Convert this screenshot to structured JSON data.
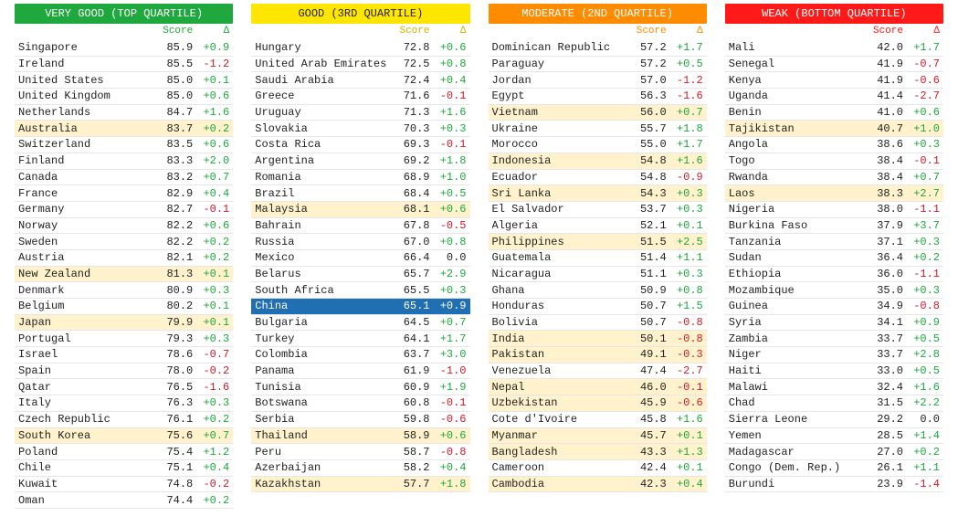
{
  "columns": [
    {
      "key": "vg",
      "title": "VERY GOOD (TOP QUARTILE)",
      "header_bg": "#1ea83e",
      "header_fg": "#ffffff",
      "sub_color": "#1ea83e",
      "labels": {
        "score": "Score",
        "delta": "Δ"
      },
      "rows": [
        {
          "country": "Singapore",
          "score": 85.9,
          "delta": 0.9
        },
        {
          "country": "Ireland",
          "score": 85.5,
          "delta": -1.2
        },
        {
          "country": "United States",
          "score": 85.0,
          "delta": 0.1
        },
        {
          "country": "United Kingdom",
          "score": 85.0,
          "delta": 0.6
        },
        {
          "country": "Netherlands",
          "score": 84.7,
          "delta": 1.6
        },
        {
          "country": "Australia",
          "score": 83.7,
          "delta": 0.2,
          "alt": true
        },
        {
          "country": "Switzerland",
          "score": 83.5,
          "delta": 0.6
        },
        {
          "country": "Finland",
          "score": 83.3,
          "delta": 2.0
        },
        {
          "country": "Canada",
          "score": 83.2,
          "delta": 0.7
        },
        {
          "country": "France",
          "score": 82.9,
          "delta": 0.4
        },
        {
          "country": "Germany",
          "score": 82.7,
          "delta": -0.1
        },
        {
          "country": "Norway",
          "score": 82.2,
          "delta": 0.6
        },
        {
          "country": "Sweden",
          "score": 82.2,
          "delta": 0.2
        },
        {
          "country": "Austria",
          "score": 82.1,
          "delta": 0.2
        },
        {
          "country": "New Zealand",
          "score": 81.3,
          "delta": 0.1,
          "alt": true
        },
        {
          "country": "Denmark",
          "score": 80.9,
          "delta": 0.3
        },
        {
          "country": "Belgium",
          "score": 80.2,
          "delta": 0.1
        },
        {
          "country": "Japan",
          "score": 79.9,
          "delta": 0.1,
          "alt": true
        },
        {
          "country": "Portugal",
          "score": 79.3,
          "delta": 0.3
        },
        {
          "country": "Israel",
          "score": 78.6,
          "delta": -0.7
        },
        {
          "country": "Spain",
          "score": 78.0,
          "delta": -0.2
        },
        {
          "country": "Qatar",
          "score": 76.5,
          "delta": -1.6
        },
        {
          "country": "Italy",
          "score": 76.3,
          "delta": 0.3
        },
        {
          "country": "Czech Republic",
          "score": 76.1,
          "delta": 0.2
        },
        {
          "country": "South Korea",
          "score": 75.6,
          "delta": 0.7,
          "alt": true
        },
        {
          "country": "Poland",
          "score": 75.4,
          "delta": 1.2
        },
        {
          "country": "Chile",
          "score": 75.1,
          "delta": 0.4
        },
        {
          "country": "Kuwait",
          "score": 74.8,
          "delta": -0.2
        },
        {
          "country": "Oman",
          "score": 74.4,
          "delta": 0.2
        }
      ]
    },
    {
      "key": "g",
      "title": "GOOD (3RD QUARTILE)",
      "header_bg": "#ffe600",
      "header_fg": "#222222",
      "sub_color": "#c9b400",
      "labels": {
        "score": "Score",
        "delta": "Δ"
      },
      "rows": [
        {
          "country": "Hungary",
          "score": 72.8,
          "delta": 0.6
        },
        {
          "country": "United Arab Emirates",
          "score": 72.5,
          "delta": 0.8
        },
        {
          "country": "Saudi Arabia",
          "score": 72.4,
          "delta": 0.4
        },
        {
          "country": "Greece",
          "score": 71.6,
          "delta": -0.1
        },
        {
          "country": "Uruguay",
          "score": 71.3,
          "delta": 1.6
        },
        {
          "country": "Slovakia",
          "score": 70.3,
          "delta": 0.3
        },
        {
          "country": "Costa Rica",
          "score": 69.3,
          "delta": -0.1
        },
        {
          "country": "Argentina",
          "score": 69.2,
          "delta": 1.8
        },
        {
          "country": "Romania",
          "score": 68.9,
          "delta": 1.0
        },
        {
          "country": "Brazil",
          "score": 68.4,
          "delta": 0.5
        },
        {
          "country": "Malaysia",
          "score": 68.1,
          "delta": 0.6,
          "alt": true
        },
        {
          "country": "Bahrain",
          "score": 67.8,
          "delta": -0.5
        },
        {
          "country": "Russia",
          "score": 67.0,
          "delta": 0.8
        },
        {
          "country": "Mexico",
          "score": 66.4,
          "delta": 0.0
        },
        {
          "country": "Belarus",
          "score": 65.7,
          "delta": 2.9
        },
        {
          "country": "South Africa",
          "score": 65.5,
          "delta": 0.3
        },
        {
          "country": "China",
          "score": 65.1,
          "delta": 0.9,
          "highlight": true
        },
        {
          "country": "Bulgaria",
          "score": 64.5,
          "delta": 0.7
        },
        {
          "country": "Turkey",
          "score": 64.1,
          "delta": 1.7
        },
        {
          "country": "Colombia",
          "score": 63.7,
          "delta": 3.0
        },
        {
          "country": "Panama",
          "score": 61.9,
          "delta": -1.0
        },
        {
          "country": "Tunisia",
          "score": 60.9,
          "delta": 1.9
        },
        {
          "country": "Botswana",
          "score": 60.8,
          "delta": -0.1
        },
        {
          "country": "Serbia",
          "score": 59.8,
          "delta": -0.6
        },
        {
          "country": "Thailand",
          "score": 58.9,
          "delta": 0.6,
          "alt": true
        },
        {
          "country": "Peru",
          "score": 58.7,
          "delta": -0.8
        },
        {
          "country": "Azerbaijan",
          "score": 58.2,
          "delta": 0.4
        },
        {
          "country": "Kazakhstan",
          "score": 57.7,
          "delta": 1.8,
          "alt": true
        }
      ]
    },
    {
      "key": "m",
      "title": "MODERATE (2ND QUARTILE)",
      "header_bg": "#ff8c00",
      "header_fg": "#ffffff",
      "sub_color": "#ff8c00",
      "labels": {
        "score": "Score",
        "delta": "Δ"
      },
      "rows": [
        {
          "country": "Dominican Republic",
          "score": 57.2,
          "delta": 1.7
        },
        {
          "country": "Paraguay",
          "score": 57.2,
          "delta": 0.5
        },
        {
          "country": "Jordan",
          "score": 57.0,
          "delta": -1.2
        },
        {
          "country": "Egypt",
          "score": 56.3,
          "delta": -1.6
        },
        {
          "country": "Vietnam",
          "score": 56.0,
          "delta": 0.7,
          "alt": true
        },
        {
          "country": "Ukraine",
          "score": 55.7,
          "delta": 1.8
        },
        {
          "country": "Morocco",
          "score": 55.0,
          "delta": 1.7
        },
        {
          "country": "Indonesia",
          "score": 54.8,
          "delta": 1.6,
          "alt": true
        },
        {
          "country": "Ecuador",
          "score": 54.8,
          "delta": -0.9
        },
        {
          "country": "Sri Lanka",
          "score": 54.3,
          "delta": 0.3,
          "alt": true
        },
        {
          "country": "El Salvador",
          "score": 53.7,
          "delta": 0.3
        },
        {
          "country": "Algeria",
          "score": 52.1,
          "delta": 0.1
        },
        {
          "country": "Philippines",
          "score": 51.5,
          "delta": 2.5,
          "alt": true
        },
        {
          "country": "Guatemala",
          "score": 51.4,
          "delta": 1.1
        },
        {
          "country": "Nicaragua",
          "score": 51.1,
          "delta": 0.3
        },
        {
          "country": "Ghana",
          "score": 50.9,
          "delta": 0.8
        },
        {
          "country": "Honduras",
          "score": 50.7,
          "delta": 1.5
        },
        {
          "country": "Bolivia",
          "score": 50.7,
          "delta": -0.8
        },
        {
          "country": "India",
          "score": 50.1,
          "delta": -0.8,
          "alt": true
        },
        {
          "country": "Pakistan",
          "score": 49.1,
          "delta": -0.3,
          "alt": true
        },
        {
          "country": "Venezuela",
          "score": 47.4,
          "delta": -2.7
        },
        {
          "country": "Nepal",
          "score": 46.0,
          "delta": -0.1,
          "alt": true
        },
        {
          "country": "Uzbekistan",
          "score": 45.9,
          "delta": -0.6,
          "alt": true
        },
        {
          "country": "Cote d'Ivoire",
          "score": 45.8,
          "delta": 1.6
        },
        {
          "country": "Myanmar",
          "score": 45.7,
          "delta": 0.1,
          "alt": true
        },
        {
          "country": "Bangladesh",
          "score": 43.3,
          "delta": 1.3,
          "alt": true
        },
        {
          "country": "Cameroon",
          "score": 42.4,
          "delta": 0.1
        },
        {
          "country": "Cambodia",
          "score": 42.3,
          "delta": 0.4,
          "alt": true
        }
      ]
    },
    {
      "key": "w",
      "title": "WEAK (BOTTOM QUARTILE)",
      "header_bg": "#ff1a1a",
      "header_fg": "#ffffff",
      "sub_color": "#ff1a1a",
      "labels": {
        "score": "Score",
        "delta": "Δ"
      },
      "rows": [
        {
          "country": "Mali",
          "score": 42.0,
          "delta": 1.7
        },
        {
          "country": "Senegal",
          "score": 41.9,
          "delta": -0.7
        },
        {
          "country": "Kenya",
          "score": 41.9,
          "delta": -0.6
        },
        {
          "country": "Uganda",
          "score": 41.4,
          "delta": -2.7
        },
        {
          "country": "Benin",
          "score": 41.0,
          "delta": 0.6
        },
        {
          "country": "Tajikistan",
          "score": 40.7,
          "delta": 1.0,
          "alt": true
        },
        {
          "country": "Angola",
          "score": 38.6,
          "delta": 0.3
        },
        {
          "country": "Togo",
          "score": 38.4,
          "delta": -0.1
        },
        {
          "country": "Rwanda",
          "score": 38.4,
          "delta": 0.7
        },
        {
          "country": "Laos",
          "score": 38.3,
          "delta": 2.7,
          "alt": true
        },
        {
          "country": "Nigeria",
          "score": 38.0,
          "delta": -1.1
        },
        {
          "country": "Burkina Faso",
          "score": 37.9,
          "delta": 3.7
        },
        {
          "country": "Tanzania",
          "score": 37.1,
          "delta": 0.3
        },
        {
          "country": "Sudan",
          "score": 36.4,
          "delta": 0.2
        },
        {
          "country": "Ethiopia",
          "score": 36.0,
          "delta": -1.1
        },
        {
          "country": "Mozambique",
          "score": 35.0,
          "delta": 0.3
        },
        {
          "country": "Guinea",
          "score": 34.9,
          "delta": -0.8
        },
        {
          "country": "Syria",
          "score": 34.1,
          "delta": 0.9
        },
        {
          "country": "Zambia",
          "score": 33.7,
          "delta": 0.5
        },
        {
          "country": "Niger",
          "score": 33.7,
          "delta": 2.8
        },
        {
          "country": "Haiti",
          "score": 33.0,
          "delta": 0.5
        },
        {
          "country": "Malawi",
          "score": 32.4,
          "delta": 1.6
        },
        {
          "country": "Chad",
          "score": 31.5,
          "delta": 2.2
        },
        {
          "country": "Sierra Leone",
          "score": 29.2,
          "delta": 0.0
        },
        {
          "country": "Yemen",
          "score": 28.5,
          "delta": 1.4
        },
        {
          "country": "Madagascar",
          "score": 27.0,
          "delta": 0.2
        },
        {
          "country": "Congo (Dem. Rep.)",
          "score": 26.1,
          "delta": 1.1
        },
        {
          "country": "Burundi",
          "score": 23.9,
          "delta": -1.4
        }
      ]
    }
  ],
  "style": {
    "delta_up_color": "#1ea83e",
    "delta_down_color": "#d11a2a",
    "delta_zero_color": "#222222",
    "alt_bg": "#fff2cc",
    "highlight_bg": "#1f6fb2",
    "highlight_fg": "#ffffff",
    "row_border": "#e6e6e6",
    "font": "Courier New, monospace"
  }
}
